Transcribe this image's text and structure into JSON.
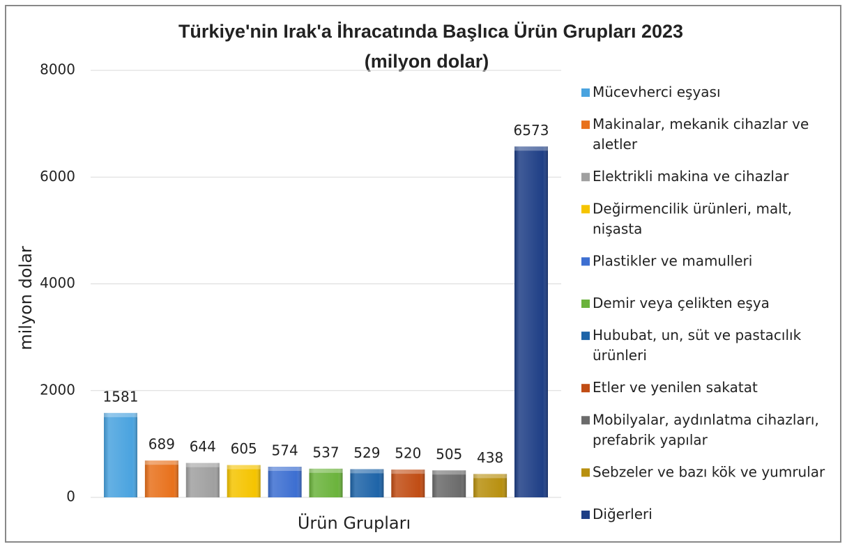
{
  "chart_data": {
    "type": "bar",
    "title": "Türkiye'nin Irak'a İhracatında Başlıca Ürün Grupları 2023",
    "subtitle": "(milyon dolar)",
    "x_label": "Ürün Grupları",
    "y_label": "milyon dolar",
    "ylim": [
      0,
      8000
    ],
    "yticks": [
      0,
      2000,
      4000,
      6000,
      8000
    ],
    "grid": true,
    "legend": "right",
    "series": [
      {
        "name": "Mücevherci eşyası",
        "color": "#4aa3df",
        "values": [
          1581
        ]
      },
      {
        "name": "Makinalar, mekanik cihazlar ve aletler",
        "color": "#e8711c",
        "values": [
          689
        ]
      },
      {
        "name": "Elektrikli makina ve cihazlar",
        "color": "#a0a0a0",
        "values": [
          644
        ]
      },
      {
        "name": "Değirmencilik ürünleri, malt, nişasta",
        "color": "#f5c400",
        "values": [
          605
        ]
      },
      {
        "name": "Plastikler ve mamulleri",
        "color": "#3d6fd1",
        "values": [
          574
        ]
      },
      {
        "name": "Demir veya çelikten eşya",
        "color": "#6bb33c",
        "values": [
          537
        ]
      },
      {
        "name": "Hububat, un, süt ve pastacılık ürünleri",
        "color": "#1e64a8",
        "values": [
          529
        ]
      },
      {
        "name": "Etler ve yenilen sakatat",
        "color": "#c14d14",
        "values": [
          520
        ]
      },
      {
        "name": "Mobilyalar, aydınlatma cihazları, prefabrik yapılar",
        "color": "#6b6b6b",
        "values": [
          505
        ]
      },
      {
        "name": "Sebzeler ve bazı kök ve yumrular",
        "color": "#b8900f",
        "values": [
          438
        ]
      },
      {
        "name": "Diğerleri",
        "color": "#1f3f86",
        "values": [
          6573
        ]
      }
    ]
  }
}
